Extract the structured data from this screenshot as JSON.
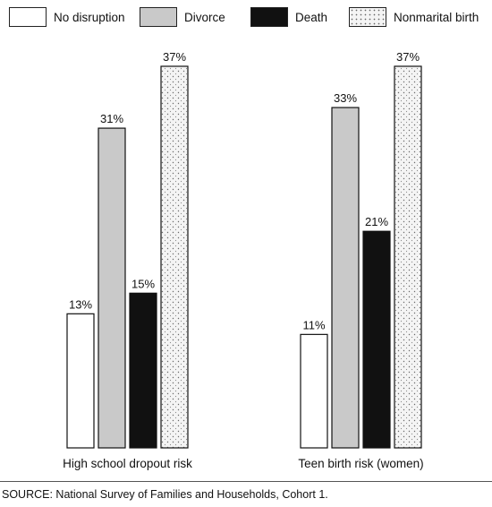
{
  "chart_data": {
    "type": "bar",
    "categories": [
      "High school dropout risk",
      "Teen birth risk (women)"
    ],
    "series": [
      {
        "name": "No disruption",
        "values": [
          13,
          11
        ],
        "labels": [
          "13%",
          "11%"
        ],
        "fill": "#ffffff",
        "pattern": "none"
      },
      {
        "name": "Divorce",
        "values": [
          31,
          33
        ],
        "labels": [
          "31%",
          "33%"
        ],
        "fill": "#c9c9c9",
        "pattern": "none"
      },
      {
        "name": "Death",
        "values": [
          15,
          21
        ],
        "labels": [
          "15%",
          "21%"
        ],
        "fill": "#111111",
        "pattern": "none"
      },
      {
        "name": "Nonmarital birth",
        "values": [
          37,
          37
        ],
        "labels": [
          "37%",
          "37%"
        ],
        "fill": "#f4f4f4",
        "pattern": "dots"
      }
    ],
    "ylim": [
      0,
      37
    ],
    "grid": false,
    "legend_position": "top"
  },
  "source": "SOURCE: National Survey of Families and Households, Cohort 1."
}
